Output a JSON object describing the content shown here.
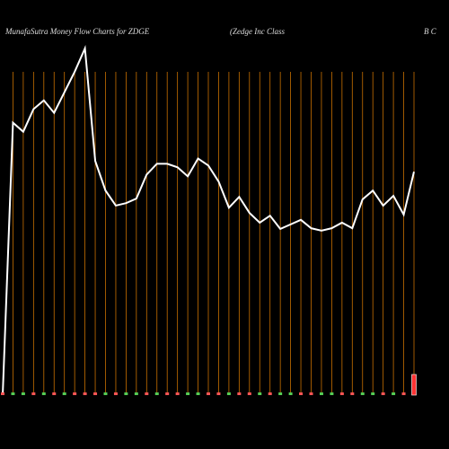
{
  "chart_data": {
    "type": "line",
    "title": "MunafaSutra  Money Flow  Charts for ZDGE",
    "subtitle": "(Zedge   Inc Class",
    "subtitle_end": "B C",
    "categories": [
      null,
      null,
      null,
      null,
      null,
      null,
      null,
      null,
      null,
      null,
      null,
      null,
      null,
      null,
      null,
      null,
      null,
      null,
      null,
      null,
      null,
      null,
      null,
      null,
      null,
      null,
      null,
      null,
      null,
      null,
      null,
      null,
      null,
      null,
      null,
      null,
      null,
      null,
      null,
      null,
      null
    ],
    "series": [
      {
        "color": "#ffffff",
        "values": [
          0,
          78.2,
          75.6,
          82.1,
          84.6,
          81.0,
          86.9,
          92.8,
          99.5,
          67.2,
          58.7,
          54.4,
          55.1,
          56.4,
          63.3,
          66.4,
          66.4,
          65.4,
          62.8,
          67.9,
          65.9,
          61.3,
          53.8,
          56.9,
          52.3,
          49.5,
          51.5,
          47.7,
          49.0,
          50.3,
          47.9,
          47.2,
          47.9,
          49.5,
          47.9,
          56.2,
          58.7,
          54.4,
          57.2,
          51.8,
          64.1
        ]
      },
      {
        "type": "bar",
        "axis": "y2",
        "values": [
          12,
          12,
          12,
          12,
          12,
          12,
          12,
          12,
          12,
          12,
          12,
          12,
          12,
          12,
          12,
          12,
          12,
          12,
          12,
          12,
          12,
          12,
          12,
          12,
          12,
          12,
          12,
          12,
          12,
          12,
          12,
          12,
          12,
          12,
          12,
          12,
          12,
          12,
          12,
          12,
          92
        ],
        "colors": [
          "#f55",
          "#5c5",
          "#5c5",
          "#f55",
          "#5c5",
          "#f55",
          "#5c5",
          "#f55",
          "#f55",
          "#f55",
          "#5c5",
          "#f55",
          "#5c5",
          "#5c5",
          "#f55",
          "#5c5",
          "#f55",
          "#f55",
          "#5c5",
          "#5c5",
          "#f55",
          "#f55",
          "#5c5",
          "#f55",
          "#f55",
          "#5c5",
          "#f55",
          "#5c5",
          "#5c5",
          "#f55",
          "#f55",
          "#5c5",
          "#5c5",
          "#f55",
          "#f55",
          "#5c5",
          "#5c5",
          "#f55",
          "#5c5",
          "#f55",
          "#f33"
        ]
      }
    ],
    "ylim": [
      0,
      100
    ],
    "y2lim": [
      0,
      100
    ],
    "gridcolor": "#c87000",
    "background": "#000000"
  }
}
